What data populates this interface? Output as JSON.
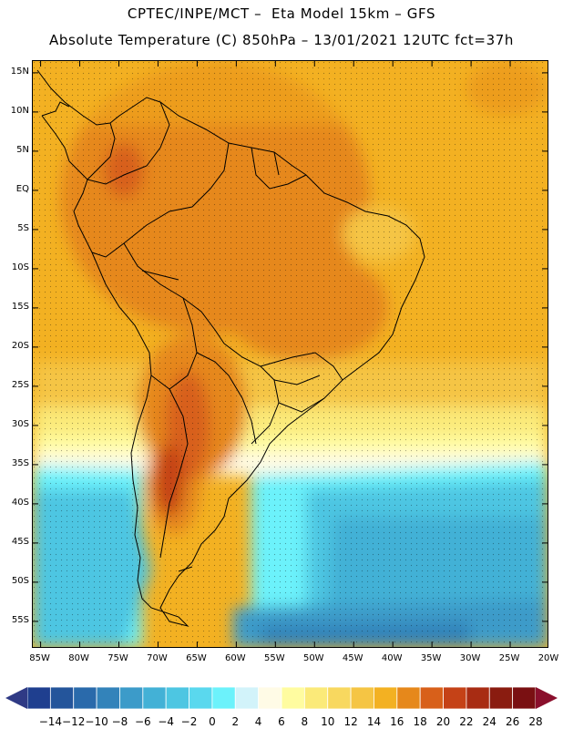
{
  "header": {
    "line1": "CPTEC/INPE/MCT –  Eta Model 15km – GFS",
    "line2": "Absolute Temperature (C) 850hPa – 13/01/2021 12UTC fct=37h"
  },
  "map": {
    "lat_labels": [
      "15N",
      "10N",
      "5N",
      "EQ",
      "5S",
      "10S",
      "15S",
      "20S",
      "25S",
      "30S",
      "35S",
      "40S",
      "45S",
      "50S",
      "55S"
    ],
    "lat_values": [
      15,
      10,
      5,
      0,
      -5,
      -10,
      -15,
      -20,
      -25,
      -30,
      -35,
      -40,
      -45,
      -50,
      -55
    ],
    "lon_labels": [
      "85W",
      "80W",
      "75W",
      "70W",
      "65W",
      "60W",
      "55W",
      "50W",
      "45W",
      "40W",
      "35W",
      "30W",
      "25W",
      "20W"
    ],
    "lon_values": [
      -85,
      -80,
      -75,
      -70,
      -65,
      -60,
      -55,
      -50,
      -45,
      -40,
      -35,
      -30,
      -25,
      -20
    ],
    "extent": {
      "lon_min": -86,
      "lon_max": -20,
      "lat_min": -58.5,
      "lat_max": 16.5
    }
  },
  "colorbar": {
    "labels": [
      "-14",
      "-12",
      "-10",
      "-8",
      "-6",
      "-4",
      "-2",
      "0",
      "2",
      "4",
      "6",
      "8",
      "10",
      "12",
      "14",
      "16",
      "18",
      "20",
      "22",
      "24",
      "26",
      "28"
    ],
    "colors": [
      "#1f3f8f",
      "#24559b",
      "#2a6aab",
      "#3383ba",
      "#3c9bc9",
      "#43b1d6",
      "#4dc6e2",
      "#5ad8ee",
      "#6cf2fb",
      "#d2f3fa",
      "#fffbe6",
      "#fffca0",
      "#fbea79",
      "#f8d85f",
      "#f5c544",
      "#f3b122",
      "#e6881b",
      "#d8601a",
      "#c54217",
      "#a82c13",
      "#8a1c10",
      "#7a1012"
    ]
  }
}
